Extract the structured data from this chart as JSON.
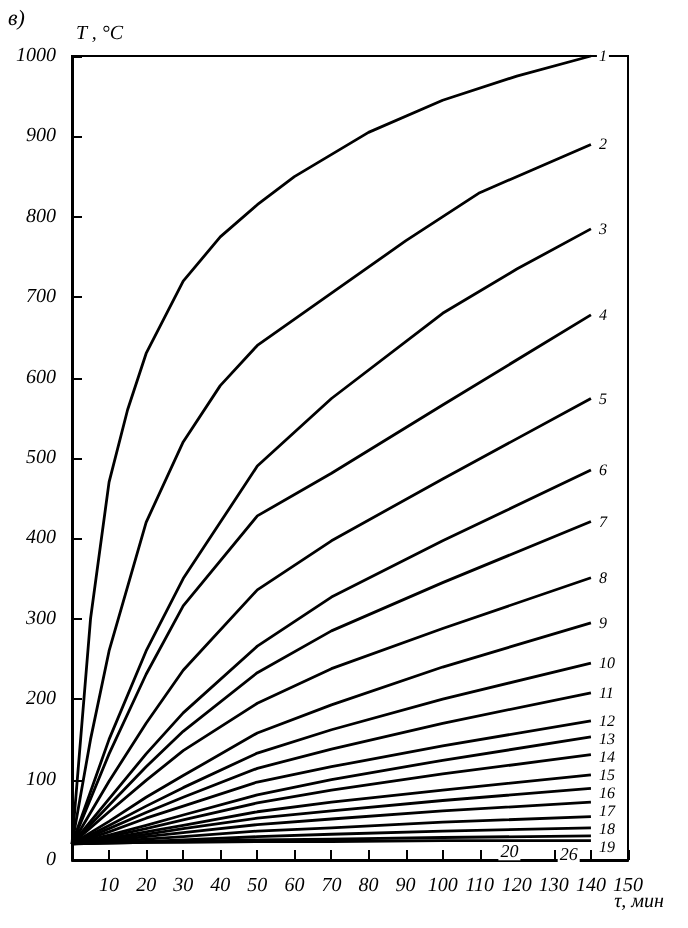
{
  "chart_data": {
    "type": "line",
    "title": "в)",
    "xlabel": "τ, мин",
    "ylabel": "T , °C",
    "xlim": [
      0,
      150
    ],
    "xticks": [
      10,
      20,
      30,
      40,
      50,
      60,
      70,
      80,
      90,
      100,
      110,
      120,
      130,
      140,
      150
    ],
    "ylim": [
      0,
      1000
    ],
    "yticks": [
      0,
      100,
      200,
      300,
      400,
      500,
      600,
      700,
      800,
      900,
      1000
    ],
    "grid": false,
    "legend": false,
    "marker": "none",
    "line_style": "solid",
    "x": [
      0,
      10,
      20,
      30,
      50,
      70,
      100,
      140
    ],
    "series": [
      {
        "name": "1",
        "color": "#000000",
        "x": [
          0,
          5,
          10,
          15,
          20,
          30,
          40,
          50,
          60,
          80,
          100,
          120,
          140
        ],
        "values": [
          20,
          300,
          470,
          560,
          630,
          720,
          775,
          815,
          850,
          905,
          945,
          975,
          1000
        ]
      },
      {
        "name": "2",
        "color": "#000000",
        "x": [
          0,
          5,
          10,
          20,
          30,
          40,
          50,
          70,
          90,
          110,
          140
        ],
        "values": [
          20,
          150,
          260,
          420,
          520,
          590,
          640,
          705,
          770,
          830,
          890
        ]
      },
      {
        "name": "3",
        "color": "#000000",
        "x": [
          0,
          10,
          20,
          30,
          40,
          50,
          70,
          100,
          120,
          140
        ],
        "values": [
          20,
          150,
          260,
          350,
          420,
          490,
          574,
          680,
          735,
          785
        ]
      },
      {
        "name": "4",
        "color": "#000000",
        "values": [
          20,
          132,
          231,
          316,
          428,
          481,
          566,
          678
        ]
      },
      {
        "name": "5",
        "color": "#000000",
        "values": [
          20,
          98,
          170,
          236,
          336,
          397,
          474,
          574
        ]
      },
      {
        "name": "6",
        "color": "#000000",
        "values": [
          20,
          76,
          132,
          183,
          266,
          327,
          397,
          485
        ]
      },
      {
        "name": "7",
        "color": "#000000",
        "values": [
          20,
          68,
          116,
          160,
          233,
          285,
          345,
          421
        ]
      },
      {
        "name": "8",
        "color": "#000000",
        "values": [
          20,
          60,
          99,
          136,
          195,
          238,
          288,
          351
        ]
      },
      {
        "name": "9",
        "color": "#000000",
        "values": [
          20,
          48,
          78,
          105,
          158,
          193,
          240,
          295
        ]
      },
      {
        "name": "10",
        "color": "#000000",
        "values": [
          20,
          43,
          67,
          90,
          133,
          162,
          200,
          245
        ]
      },
      {
        "name": "11",
        "color": "#000000",
        "values": [
          20,
          39,
          59,
          78,
          114,
          138,
          170,
          208
        ]
      },
      {
        "name": "12",
        "color": "#000000",
        "values": [
          20,
          35,
          52,
          67,
          97,
          116,
          142,
          173
        ]
      },
      {
        "name": "13",
        "color": "#000000",
        "values": [
          20,
          31,
          43,
          56,
          81,
          100,
          124,
          153
        ]
      },
      {
        "name": "14",
        "color": "#000000",
        "values": [
          20,
          29,
          39,
          50,
          71,
          87,
          107,
          131
        ]
      },
      {
        "name": "15",
        "color": "#000000",
        "values": [
          20,
          27,
          35,
          43,
          60,
          72,
          87,
          106
        ]
      },
      {
        "name": "16",
        "color": "#000000",
        "values": [
          20,
          26,
          32,
          39,
          52,
          61,
          74,
          89
        ]
      },
      {
        "name": "17",
        "color": "#000000",
        "values": [
          20,
          24,
          29,
          34,
          44,
          51,
          61,
          72
        ]
      },
      {
        "name": "18",
        "color": "#000000",
        "values": [
          20,
          23,
          26,
          29,
          36,
          40,
          47,
          54
        ]
      },
      {
        "name": "19",
        "color": "#000000",
        "values": [
          20,
          22,
          23,
          25,
          29,
          32,
          36,
          40
        ]
      },
      {
        "color": "#000000",
        "values": [
          20,
          21,
          22,
          23,
          25,
          26,
          28,
          30
        ]
      },
      {
        "color": "#000000",
        "values": [
          20,
          21,
          22,
          22,
          23,
          23,
          24,
          24
        ]
      }
    ],
    "annotations": [
      {
        "text": "20",
        "x": 118,
        "y": 27
      },
      {
        "text": "26",
        "x": 134,
        "y": 24
      }
    ]
  }
}
